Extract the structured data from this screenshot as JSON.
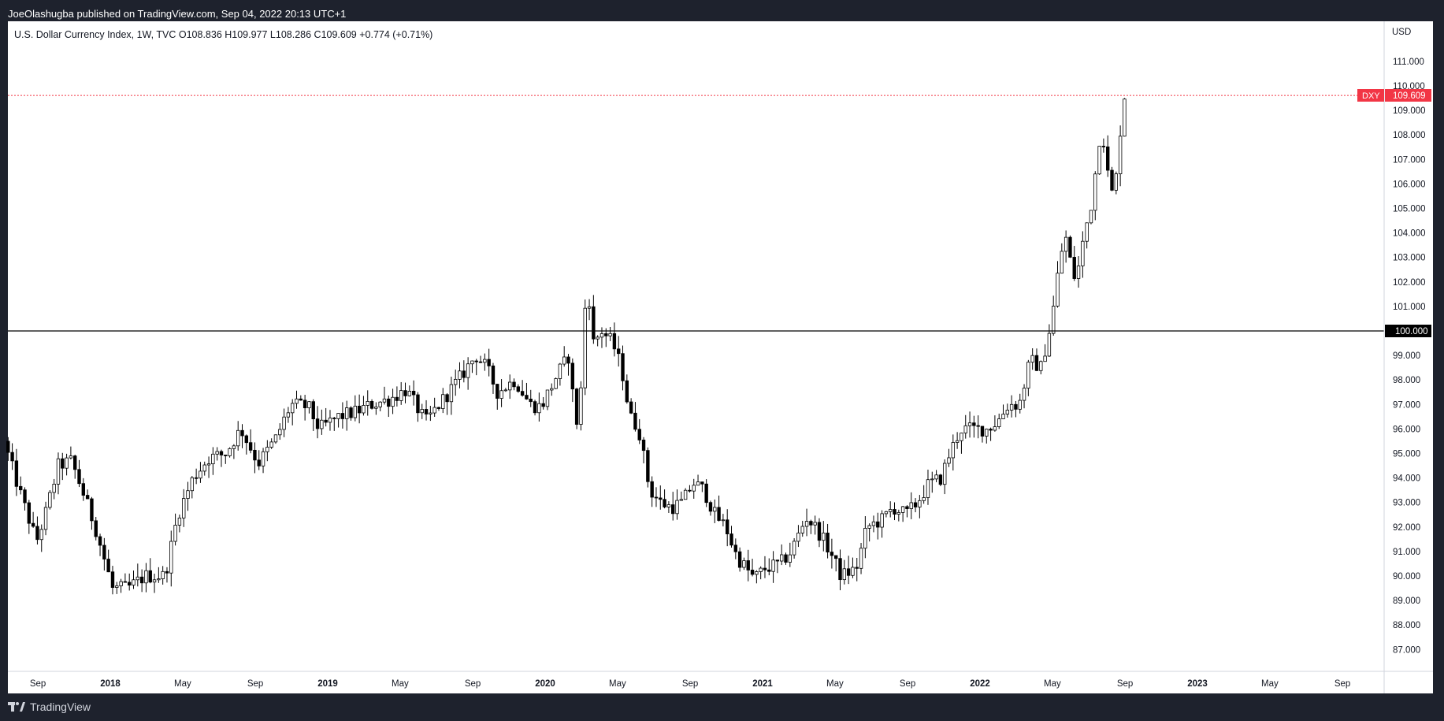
{
  "header": {
    "published": "JoeOlashugba published on TradingView.com, Sep 04, 2022 20:13 UTC+1"
  },
  "legend": {
    "text": "U.S. Dollar Currency Index, 1W, TVC  O108.836  H109.977  L108.286  C109.609  +0.774 (+0.71%)"
  },
  "footer": {
    "brand": "TradingView"
  },
  "colors": {
    "background_dark": "#1e222d",
    "plot_bg": "#ffffff",
    "candle_up": "#ffffff",
    "candle_down": "#000000",
    "candle_outline": "#000000",
    "price_line": "#f23645",
    "level_line": "#000000"
  },
  "chart_data": {
    "type": "candlestick",
    "symbol": "DXY",
    "currency_label": "USD",
    "timeframe": "1W",
    "ylim": [
      86.3,
      112.0
    ],
    "y_ticks": [
      87,
      88,
      89,
      90,
      91,
      92,
      93,
      94,
      95,
      96,
      97,
      98,
      99,
      100,
      101,
      102,
      103,
      104,
      105,
      106,
      107,
      108,
      109,
      110,
      111
    ],
    "y_tick_labels": [
      "87.000",
      "88.000",
      "89.000",
      "90.000",
      "91.000",
      "92.000",
      "93.000",
      "94.000",
      "95.000",
      "96.000",
      "97.000",
      "98.000",
      "99.000",
      "100.000",
      "101.000",
      "102.000",
      "103.000",
      "104.000",
      "105.000",
      "106.000",
      "107.000",
      "108.000",
      "109.000",
      "110.000",
      "111.000"
    ],
    "x_ticks": [
      {
        "label": "Sep",
        "t": 2017.667,
        "bold": false
      },
      {
        "label": "2018",
        "t": 2018.0,
        "bold": true
      },
      {
        "label": "May",
        "t": 2018.333,
        "bold": false
      },
      {
        "label": "Sep",
        "t": 2018.667,
        "bold": false
      },
      {
        "label": "2019",
        "t": 2019.0,
        "bold": true
      },
      {
        "label": "May",
        "t": 2019.333,
        "bold": false
      },
      {
        "label": "Sep",
        "t": 2019.667,
        "bold": false
      },
      {
        "label": "2020",
        "t": 2020.0,
        "bold": true
      },
      {
        "label": "May",
        "t": 2020.333,
        "bold": false
      },
      {
        "label": "Sep",
        "t": 2020.667,
        "bold": false
      },
      {
        "label": "2021",
        "t": 2021.0,
        "bold": true
      },
      {
        "label": "May",
        "t": 2021.333,
        "bold": false
      },
      {
        "label": "Sep",
        "t": 2021.667,
        "bold": false
      },
      {
        "label": "2022",
        "t": 2022.0,
        "bold": true
      },
      {
        "label": "May",
        "t": 2022.333,
        "bold": false
      },
      {
        "label": "Sep",
        "t": 2022.667,
        "bold": false
      },
      {
        "label": "2023",
        "t": 2023.0,
        "bold": true
      },
      {
        "label": "May",
        "t": 2023.333,
        "bold": false
      },
      {
        "label": "Sep",
        "t": 2023.667,
        "bold": false
      }
    ],
    "anchors": [
      [
        2017.53,
        95.5
      ],
      [
        2017.6,
        93.5
      ],
      [
        2017.68,
        91.4
      ],
      [
        2017.72,
        92.5
      ],
      [
        2017.78,
        94.5
      ],
      [
        2017.84,
        94.7
      ],
      [
        2017.89,
        93.5
      ],
      [
        2017.95,
        92.0
      ],
      [
        2018.03,
        89.5
      ],
      [
        2018.1,
        89.5
      ],
      [
        2018.18,
        90.0
      ],
      [
        2018.27,
        90.0
      ],
      [
        2018.33,
        92.5
      ],
      [
        2018.4,
        94.0
      ],
      [
        2018.47,
        94.8
      ],
      [
        2018.55,
        95.0
      ],
      [
        2018.62,
        96.0
      ],
      [
        2018.7,
        94.6
      ],
      [
        2018.78,
        95.6
      ],
      [
        2018.85,
        97.0
      ],
      [
        2018.93,
        96.9
      ],
      [
        2018.98,
        96.0
      ],
      [
        2019.07,
        96.5
      ],
      [
        2019.15,
        96.7
      ],
      [
        2019.22,
        97.0
      ],
      [
        2019.3,
        97.2
      ],
      [
        2019.38,
        97.6
      ],
      [
        2019.47,
        96.3
      ],
      [
        2019.55,
        97.2
      ],
      [
        2019.62,
        98.0
      ],
      [
        2019.7,
        99.0
      ],
      [
        2019.75,
        98.5
      ],
      [
        2019.8,
        97.5
      ],
      [
        2019.88,
        98.0
      ],
      [
        2019.95,
        97.0
      ],
      [
        2020.0,
        96.9
      ],
      [
        2020.08,
        98.3
      ],
      [
        2020.13,
        99.0
      ],
      [
        2020.16,
        96.0
      ],
      [
        2020.19,
        98.0
      ],
      [
        2020.21,
        102.5
      ],
      [
        2020.24,
        99.5
      ],
      [
        2020.28,
        100.0
      ],
      [
        2020.33,
        99.5
      ],
      [
        2020.37,
        98.5
      ],
      [
        2020.41,
        96.5
      ],
      [
        2020.45,
        96.0
      ],
      [
        2020.5,
        93.5
      ],
      [
        2020.55,
        93.0
      ],
      [
        2020.6,
        92.8
      ],
      [
        2020.65,
        93.0
      ],
      [
        2020.7,
        93.8
      ],
      [
        2020.75,
        93.5
      ],
      [
        2020.8,
        92.5
      ],
      [
        2020.85,
        92.0
      ],
      [
        2020.9,
        90.8
      ],
      [
        2020.98,
        89.9
      ],
      [
        2021.03,
        90.3
      ],
      [
        2021.1,
        90.5
      ],
      [
        2021.15,
        91.0
      ],
      [
        2021.22,
        92.4
      ],
      [
        2021.27,
        91.9
      ],
      [
        2021.33,
        91.0
      ],
      [
        2021.38,
        90.0
      ],
      [
        2021.45,
        90.3
      ],
      [
        2021.5,
        92.0
      ],
      [
        2021.57,
        92.3
      ],
      [
        2021.62,
        92.8
      ],
      [
        2021.68,
        92.5
      ],
      [
        2021.73,
        93.0
      ],
      [
        2021.78,
        93.7
      ],
      [
        2021.84,
        94.0
      ],
      [
        2021.88,
        95.0
      ],
      [
        2021.93,
        96.0
      ],
      [
        2021.98,
        96.0
      ],
      [
        2022.05,
        96.0
      ],
      [
        2022.1,
        96.3
      ],
      [
        2022.15,
        97.0
      ],
      [
        2022.2,
        97.0
      ],
      [
        2022.25,
        98.8
      ],
      [
        2022.3,
        98.5
      ],
      [
        2022.35,
        100.5
      ],
      [
        2022.38,
        102.5
      ],
      [
        2022.41,
        104.0
      ],
      [
        2022.43,
        103.0
      ],
      [
        2022.46,
        102.0
      ],
      [
        2022.49,
        103.5
      ],
      [
        2022.52,
        104.8
      ],
      [
        2022.54,
        105.5
      ],
      [
        2022.56,
        107.5
      ],
      [
        2022.58,
        108.3
      ],
      [
        2022.61,
        106.2
      ],
      [
        2022.63,
        105.5
      ],
      [
        2022.65,
        106.5
      ],
      [
        2022.67,
        108.8
      ],
      [
        2022.68,
        109.6
      ]
    ],
    "y_marker": {
      "value": 100.0,
      "label": "100.000"
    },
    "last_price": {
      "value": 109.609,
      "label": "109.609",
      "symbol_tag": "DXY"
    }
  }
}
